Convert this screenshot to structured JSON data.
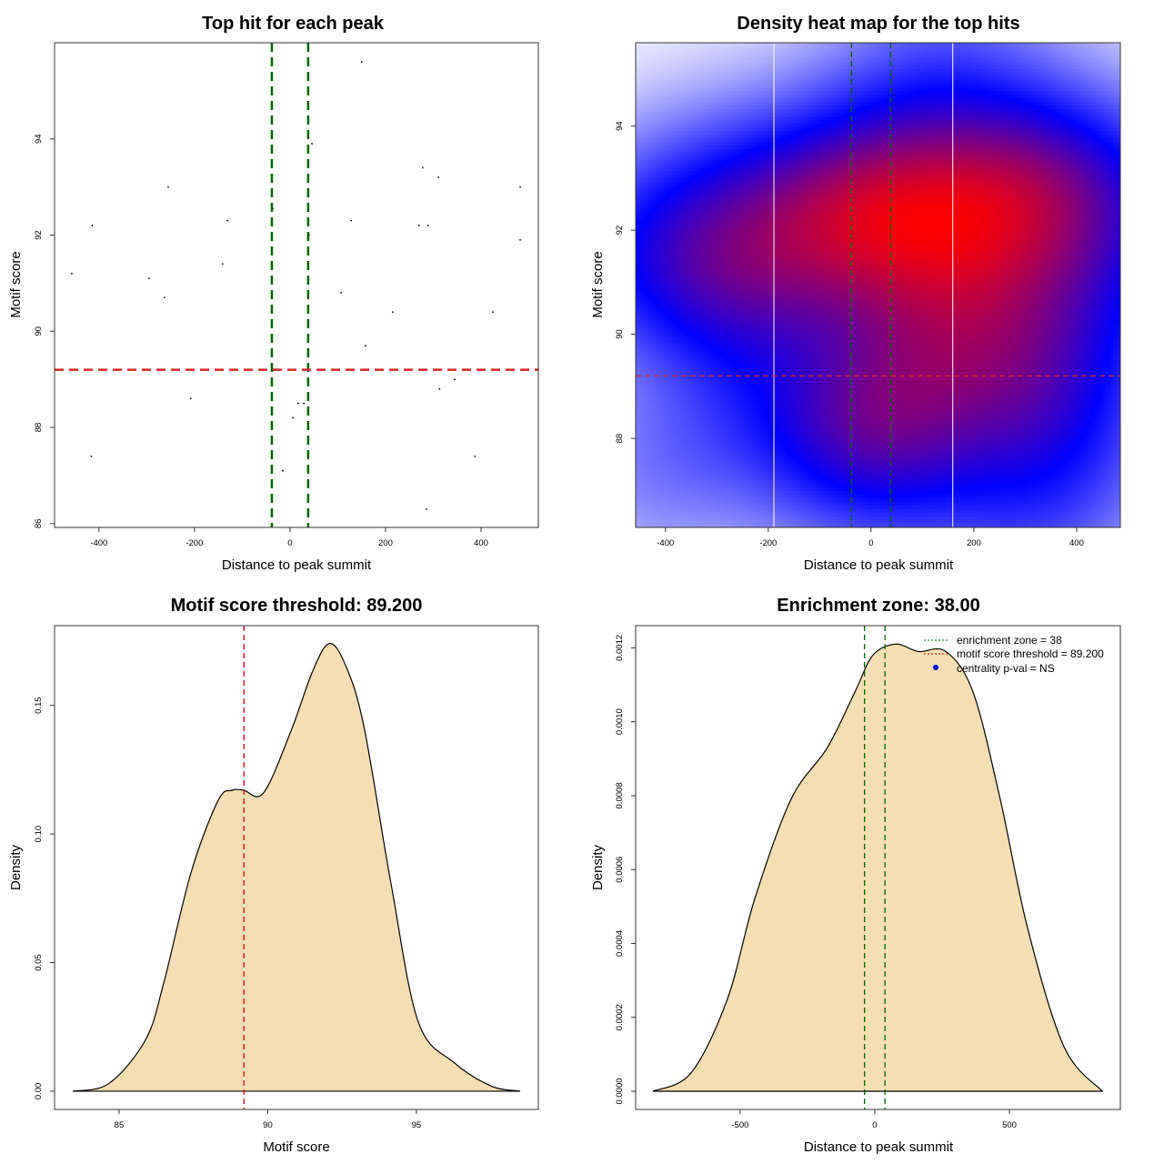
{
  "chart_data": [
    {
      "type": "scatter",
      "title": "Top hit for each peak",
      "xlabel": "Distance to peak summit",
      "ylabel": "Motif score",
      "xlim": [
        -493,
        520
      ],
      "ylim": [
        85.92,
        96.0
      ],
      "xticks": [
        -400,
        -200,
        0,
        200,
        400
      ],
      "yticks": [
        86,
        88,
        90,
        92,
        94
      ],
      "vlines": {
        "values": [
          -38,
          38
        ],
        "color": "#006400",
        "style": "dashed"
      },
      "hlines": {
        "values": [
          89.2
        ],
        "color": "#d62728",
        "style": "dashed"
      },
      "points": [
        [
          -457,
          91.2
        ],
        [
          -414,
          92.2
        ],
        [
          -416,
          87.4
        ],
        [
          -295,
          91.1
        ],
        [
          -263,
          90.7
        ],
        [
          -255,
          93.0
        ],
        [
          -208,
          88.6
        ],
        [
          -141,
          91.4
        ],
        [
          -131,
          92.3
        ],
        [
          -36,
          92.55
        ],
        [
          -15,
          87.1
        ],
        [
          6,
          88.2
        ],
        [
          17,
          88.5
        ],
        [
          29,
          88.5
        ],
        [
          38,
          92.55
        ],
        [
          40,
          92.0
        ],
        [
          46,
          93.9
        ],
        [
          107,
          90.8
        ],
        [
          128,
          92.3
        ],
        [
          150,
          95.6
        ],
        [
          158,
          89.7
        ],
        [
          215,
          90.4
        ],
        [
          270,
          92.2
        ],
        [
          278,
          93.4
        ],
        [
          286,
          86.3
        ],
        [
          289,
          92.2
        ],
        [
          311,
          93.2
        ],
        [
          313,
          88.8
        ],
        [
          345,
          89.0
        ],
        [
          387,
          87.4
        ],
        [
          425,
          90.4
        ],
        [
          482,
          93.0
        ],
        [
          482,
          91.9
        ]
      ]
    },
    {
      "type": "heatmap",
      "title": "Density heat map for the top hits",
      "xlabel": "Distance to peak summit",
      "ylabel": "Motif score",
      "xlim": [
        -458,
        485
      ],
      "ylim": [
        86.29,
        95.6
      ],
      "xticks": [
        -400,
        -200,
        0,
        200,
        400
      ],
      "yticks": [
        88,
        90,
        92,
        94
      ],
      "colors": [
        "#ffffff",
        "#0000ff",
        "#ff0000"
      ],
      "white_vlines": [
        -189,
        159
      ],
      "vlines": {
        "values": [
          -38,
          38
        ],
        "color": "#006400",
        "style": "dashed"
      },
      "hlines": {
        "values": [
          89.2
        ],
        "color": "#d62728",
        "style": "dashed"
      },
      "bandwidth": [
        150,
        1.3
      ]
    },
    {
      "type": "area",
      "title": "Motif score threshold: 89.200",
      "xlabel": "Motif score",
      "ylabel": "Density",
      "xlim": [
        82.83,
        99.1
      ],
      "ylim": [
        -0.0071,
        0.181
      ],
      "xticks": [
        85,
        90,
        95
      ],
      "yticks": [
        0.0,
        0.05,
        0.1,
        0.15
      ],
      "ytick_labels": [
        "0.00",
        "0.05",
        "0.10",
        "0.15"
      ],
      "fill": "#f5deb3",
      "vlines": {
        "values": [
          89.2
        ],
        "color": "#ff0000",
        "style": "dashed"
      },
      "x": [
        83.44,
        84.66,
        85.89,
        86.5,
        87.42,
        88.33,
        88.8,
        89.19,
        89.86,
        90.78,
        91.5,
        92.06,
        92.6,
        93.23,
        94.14,
        95.06,
        96.28,
        97.51,
        98.49
      ],
      "y": [
        0,
        0.003,
        0.02,
        0.042,
        0.085,
        0.113,
        0.117,
        0.117,
        0.116,
        0.14,
        0.163,
        0.174,
        0.166,
        0.142,
        0.081,
        0.027,
        0.011,
        0.002,
        0
      ]
    },
    {
      "type": "area",
      "title": "Enrichment zone: 38.00",
      "xlabel": "Distance to peak summit",
      "ylabel": "Density",
      "xlim": [
        -888,
        912
      ],
      "ylim": [
        -4.92e-05,
        0.00126
      ],
      "xticks": [
        -500,
        0,
        500
      ],
      "yticks": [
        0,
        0.0002,
        0.0004,
        0.0006,
        0.0008,
        0.001,
        0.0012
      ],
      "ytick_labels": [
        "0.0000",
        "0.0002",
        "0.0004",
        "0.0006",
        "0.0008",
        "0.0010",
        "0.0012"
      ],
      "fill": "#f5deb3",
      "vlines": {
        "values": [
          -38,
          38
        ],
        "color": "#006400",
        "style": "dashed"
      },
      "x": [
        -824,
        -682,
        -547,
        -446,
        -311,
        -176,
        -74,
        -7,
        78,
        162,
        264,
        365,
        466,
        568,
        703,
        845
      ],
      "y": [
        0,
        5e-05,
        0.00025,
        0.00052,
        0.00079,
        0.00093,
        0.00108,
        0.00118,
        0.00121,
        0.00119,
        0.00119,
        0.00108,
        0.00079,
        0.00044,
        0.00012,
        0
      ],
      "legend": {
        "position": "top-right",
        "entries": [
          {
            "label": "enrichment zone = 38",
            "color": "#006400",
            "type": "dotted-line"
          },
          {
            "label": "motif score threshold = 89.200",
            "color": "#ff0000",
            "type": "dotted-line"
          },
          {
            "label": "centrality p-val = NS",
            "color": "#0000ff",
            "type": "point"
          }
        ]
      }
    }
  ]
}
